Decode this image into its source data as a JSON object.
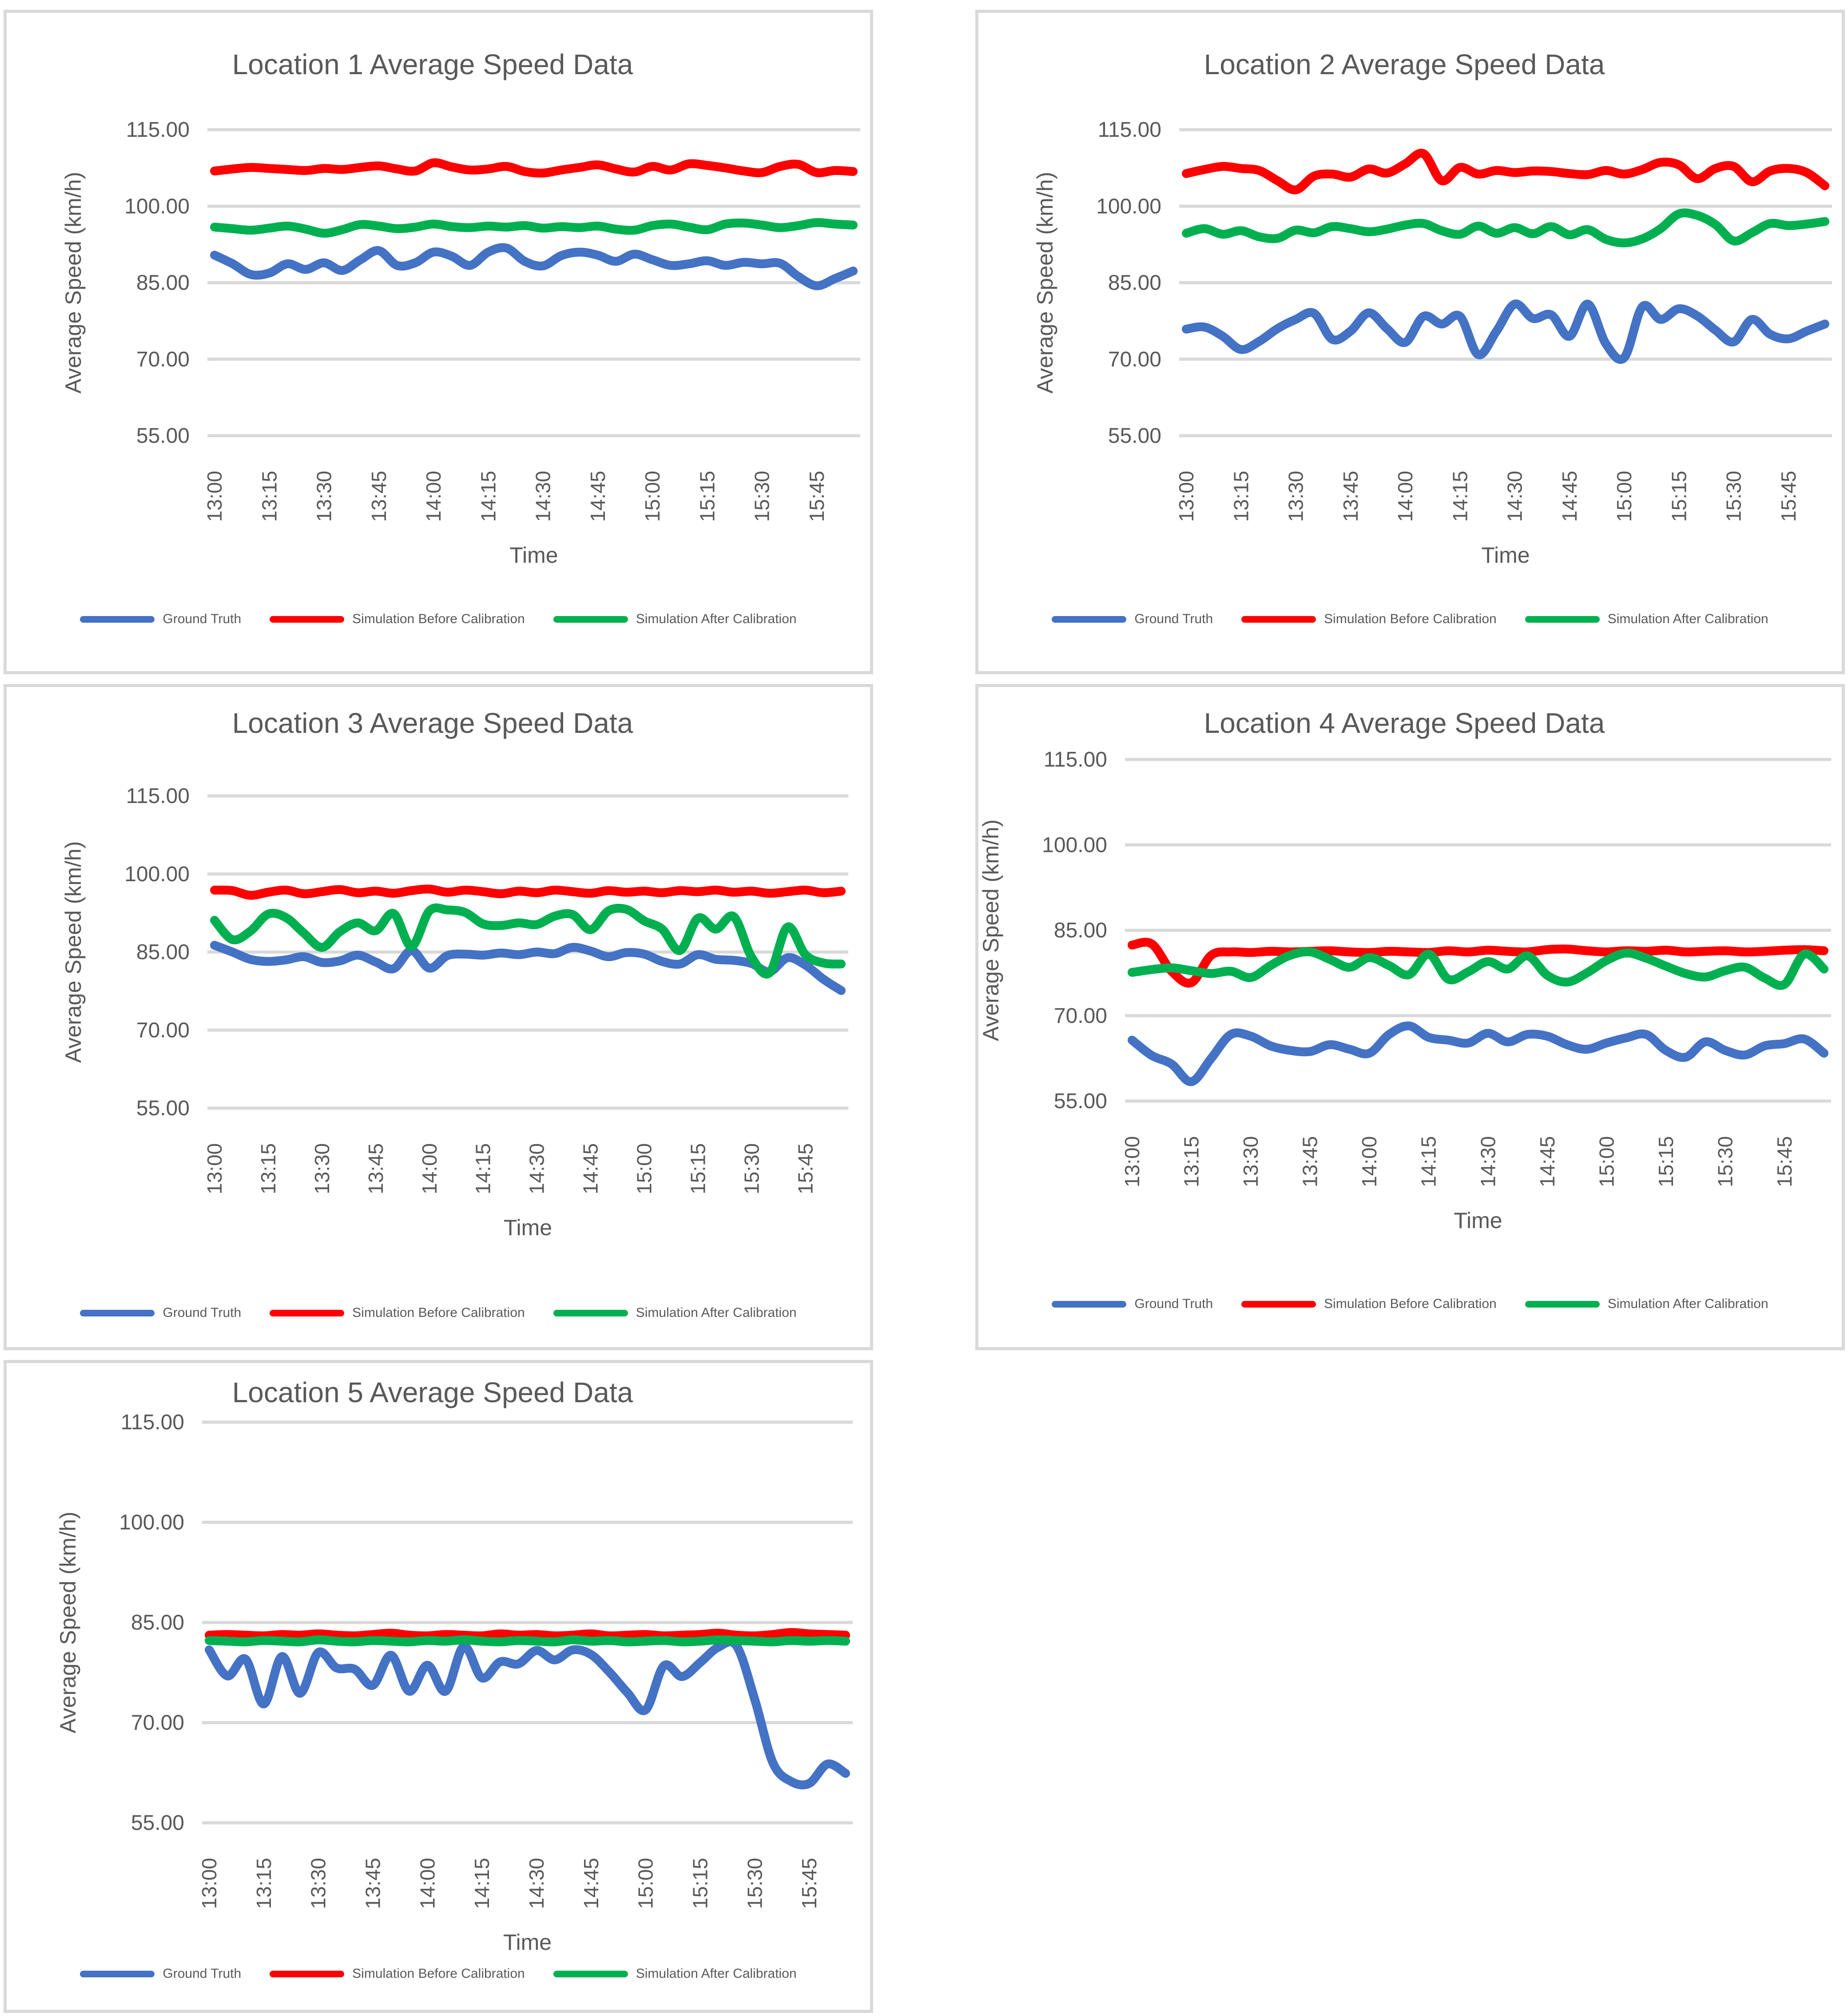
{
  "page": {
    "background": "#FFFFFF"
  },
  "colors": {
    "ground_truth": "#4472C4",
    "before_calibration": "#FF0000",
    "after_calibration": "#00B050",
    "gridline": "#D9D9D9",
    "chart_border": "#D9D9D9",
    "text": "#595959"
  },
  "axis": {
    "y_title": "Average Speed (km/h)",
    "x_title": "Time",
    "y_tick_labels": [
      "115.00",
      "100.00",
      "85.00",
      "70.00",
      "55.00"
    ],
    "y_tick_values": [
      115,
      100,
      85,
      70,
      55
    ],
    "y_min": 55,
    "y_max": 115,
    "x_tick_labels": [
      "13:00",
      "13:15",
      "13:30",
      "13:45",
      "14:00",
      "14:15",
      "14:30",
      "14:45",
      "15:00",
      "15:15",
      "15:30",
      "15:45"
    ]
  },
  "legend": {
    "items": [
      {
        "label": "Ground Truth",
        "color_key": "ground_truth"
      },
      {
        "label": "Simulation Before Calibration",
        "color_key": "before_calibration"
      },
      {
        "label": "Simulation After Calibration",
        "color_key": "after_calibration"
      }
    ]
  },
  "chart_data": {
    "type": "line",
    "grid": "horizontal-only",
    "legend_position": "bottom",
    "x_categories": [
      "13:00",
      "13:05",
      "13:10",
      "13:15",
      "13:20",
      "13:25",
      "13:30",
      "13:35",
      "13:40",
      "13:45",
      "13:50",
      "13:55",
      "14:00",
      "14:05",
      "14:10",
      "14:15",
      "14:20",
      "14:25",
      "14:30",
      "14:35",
      "14:40",
      "14:45",
      "14:50",
      "14:55",
      "15:00",
      "15:05",
      "15:10",
      "15:15",
      "15:20",
      "15:25",
      "15:30",
      "15:35",
      "15:40",
      "15:45",
      "15:50",
      "15:55"
    ],
    "charts": [
      {
        "title": "Location 1 Average Speed Data",
        "series": [
          {
            "name": "Ground Truth",
            "color_key": "ground_truth",
            "values": [
              90.4,
              88.7,
              86.6,
              86.9,
              88.7,
              87.6,
              88.9,
              87.4,
              89.5,
              91.3,
              88.4,
              88.9,
              91.0,
              90.2,
              88.4,
              91.0,
              91.8,
              89.2,
              88.3,
              90.3,
              91.0,
              90.4,
              89.2,
              90.6,
              89.5,
              88.4,
              88.7,
              89.3,
              88.4,
              89.0,
              88.7,
              88.8,
              86.2,
              84.4,
              85.8,
              87.3
            ]
          },
          {
            "name": "Simulation Before Calibration",
            "color_key": "before_calibration",
            "values": [
              106.9,
              107.3,
              107.6,
              107.4,
              107.2,
              107.0,
              107.4,
              107.2,
              107.6,
              107.9,
              107.3,
              106.9,
              108.5,
              107.7,
              107.1,
              107.3,
              107.8,
              106.8,
              106.5,
              107.1,
              107.6,
              108.1,
              107.3,
              106.7,
              107.8,
              107.1,
              108.3,
              108.0,
              107.5,
              106.9,
              106.6,
              107.8,
              108.2,
              106.6,
              107.0,
              106.8
            ]
          },
          {
            "name": "Simulation After Calibration",
            "color_key": "after_calibration",
            "values": [
              95.9,
              95.6,
              95.3,
              95.7,
              96.1,
              95.5,
              94.7,
              95.4,
              96.4,
              96.1,
              95.6,
              95.9,
              96.5,
              96.0,
              95.8,
              96.1,
              95.9,
              96.2,
              95.7,
              96.0,
              95.8,
              96.1,
              95.5,
              95.3,
              96.2,
              96.5,
              95.9,
              95.4,
              96.5,
              96.7,
              96.3,
              95.8,
              96.2,
              96.8,
              96.5,
              96.3
            ]
          }
        ]
      },
      {
        "title": "Location 2 Average Speed Data",
        "series": [
          {
            "name": "Ground Truth",
            "color_key": "ground_truth",
            "values": [
              75.9,
              76.3,
              74.5,
              71.9,
              73.5,
              76.0,
              77.8,
              79.0,
              73.9,
              75.5,
              79.1,
              76.0,
              73.3,
              78.4,
              76.9,
              78.4,
              70.9,
              75.5,
              80.8,
              78.0,
              78.7,
              74.5,
              80.8,
              73.0,
              70.3,
              80.3,
              77.8,
              79.9,
              78.5,
              75.7,
              73.4,
              77.8,
              74.9,
              74.0,
              75.5,
              76.9
            ]
          },
          {
            "name": "Simulation Before Calibration",
            "color_key": "before_calibration",
            "values": [
              106.4,
              107.2,
              107.8,
              107.4,
              107.0,
              105.0,
              103.2,
              105.9,
              106.3,
              105.7,
              107.3,
              106.5,
              108.3,
              110.3,
              105.0,
              107.6,
              106.3,
              107.0,
              106.6,
              106.9,
              106.8,
              106.4,
              106.2,
              107.0,
              106.3,
              107.2,
              108.6,
              108.1,
              105.4,
              107.4,
              107.8,
              104.8,
              106.9,
              107.4,
              106.6,
              104.0
            ]
          },
          {
            "name": "Simulation After Calibration",
            "color_key": "after_calibration",
            "values": [
              94.7,
              95.6,
              94.5,
              95.2,
              94.0,
              93.7,
              95.3,
              94.8,
              96.0,
              95.6,
              95.0,
              95.5,
              96.3,
              96.6,
              95.2,
              94.5,
              96.1,
              94.7,
              95.8,
              94.6,
              96.0,
              94.4,
              95.4,
              93.5,
              92.8,
              93.6,
              95.6,
              98.5,
              98.2,
              96.4,
              93.2,
              94.8,
              96.6,
              96.2,
              96.5,
              97.0
            ]
          }
        ]
      },
      {
        "title": "Location 3 Average Speed Data",
        "series": [
          {
            "name": "Ground Truth",
            "color_key": "ground_truth",
            "values": [
              86.3,
              85.0,
              83.6,
              83.2,
              83.5,
              84.1,
              83.0,
              83.3,
              84.4,
              83.1,
              81.8,
              85.3,
              81.9,
              84.3,
              84.6,
              84.4,
              84.8,
              84.5,
              85.0,
              84.7,
              85.9,
              85.2,
              84.1,
              84.9,
              84.6,
              83.2,
              82.7,
              84.5,
              83.6,
              83.4,
              82.8,
              81.2,
              83.9,
              82.5,
              79.8,
              77.6
            ]
          },
          {
            "name": "Simulation Before Calibration",
            "color_key": "before_calibration",
            "values": [
              96.9,
              96.8,
              95.9,
              96.5,
              96.9,
              96.2,
              96.6,
              97.0,
              96.4,
              96.7,
              96.3,
              96.8,
              97.1,
              96.5,
              96.9,
              96.6,
              96.2,
              96.7,
              96.4,
              96.9,
              96.6,
              96.3,
              96.8,
              96.5,
              96.7,
              96.4,
              96.8,
              96.6,
              96.9,
              96.5,
              96.7,
              96.3,
              96.6,
              96.9,
              96.4,
              96.7
            ]
          },
          {
            "name": "Simulation After Calibration",
            "color_key": "after_calibration",
            "values": [
              91.1,
              87.4,
              89.0,
              92.3,
              91.6,
              88.6,
              85.9,
              88.9,
              90.6,
              89.1,
              92.4,
              86.1,
              92.9,
              93.1,
              92.6,
              90.4,
              90.1,
              90.6,
              90.3,
              91.9,
              92.2,
              89.3,
              92.9,
              93.2,
              91.0,
              89.4,
              85.3,
              91.5,
              89.4,
              91.8,
              84.0,
              81.0,
              89.8,
              84.5,
              82.9,
              82.7
            ]
          }
        ]
      },
      {
        "title": "Location 4 Average Speed Data",
        "series": [
          {
            "name": "Ground Truth",
            "color_key": "ground_truth",
            "values": [
              65.7,
              63.0,
              61.5,
              58.4,
              62.5,
              66.7,
              66.4,
              64.7,
              63.9,
              63.7,
              64.9,
              64.1,
              63.4,
              66.7,
              68.2,
              66.2,
              65.7,
              65.2,
              66.9,
              65.4,
              66.7,
              66.4,
              64.9,
              64.1,
              65.2,
              66.1,
              66.7,
              63.9,
              62.7,
              65.4,
              63.9,
              63.1,
              64.7,
              65.1,
              65.9,
              63.4
            ]
          },
          {
            "name": "Simulation Before Calibration",
            "color_key": "before_calibration",
            "values": [
              82.4,
              82.6,
              77.8,
              75.8,
              80.6,
              81.2,
              81.1,
              81.3,
              81.2,
              81.3,
              81.4,
              81.2,
              81.1,
              81.3,
              81.2,
              81.1,
              81.4,
              81.2,
              81.5,
              81.3,
              81.2,
              81.6,
              81.7,
              81.4,
              81.2,
              81.4,
              81.3,
              81.5,
              81.2,
              81.3,
              81.4,
              81.2,
              81.3,
              81.5,
              81.6,
              81.4
            ]
          },
          {
            "name": "Simulation After Calibration",
            "color_key": "after_calibration",
            "values": [
              77.6,
              78.1,
              78.4,
              77.9,
              77.4,
              77.8,
              76.7,
              78.8,
              80.6,
              81.2,
              79.9,
              78.5,
              80.2,
              78.8,
              77.2,
              80.8,
              76.4,
              77.7,
              79.5,
              78.2,
              80.5,
              77.1,
              75.9,
              77.5,
              79.7,
              81.0,
              80.1,
              78.7,
              77.4,
              76.8,
              77.9,
              78.5,
              76.6,
              75.5,
              80.8,
              78.2
            ]
          }
        ]
      },
      {
        "title": "Location 5 Average Speed Data",
        "series": [
          {
            "name": "Ground Truth",
            "color_key": "ground_truth",
            "values": [
              80.9,
              77.0,
              79.5,
              72.8,
              79.9,
              74.4,
              80.5,
              78.2,
              78.0,
              75.6,
              80.1,
              74.7,
              78.6,
              74.7,
              81.4,
              76.7,
              79.1,
              78.8,
              80.8,
              79.4,
              80.9,
              80.2,
              77.6,
              74.5,
              71.9,
              78.5,
              76.9,
              79.0,
              81.3,
              81.5,
              73.5,
              64.0,
              61.2,
              60.9,
              63.8,
              62.4
            ]
          },
          {
            "name": "Simulation Before Calibration",
            "color_key": "before_calibration",
            "values": [
              83.1,
              83.2,
              83.1,
              83.0,
              83.2,
              83.1,
              83.3,
              83.1,
              83.0,
              83.2,
              83.4,
              83.1,
              83.0,
              83.2,
              83.1,
              83.0,
              83.3,
              83.1,
              83.2,
              83.0,
              83.1,
              83.3,
              83.0,
              83.1,
              83.2,
              83.0,
              83.1,
              83.2,
              83.4,
              83.1,
              83.0,
              83.2,
              83.5,
              83.3,
              83.2,
              83.1
            ]
          },
          {
            "name": "Simulation After Calibration",
            "color_key": "after_calibration",
            "values": [
              82.3,
              82.2,
              82.1,
              82.3,
              82.2,
              82.1,
              82.4,
              82.2,
              82.1,
              82.3,
              82.2,
              82.1,
              82.3,
              82.2,
              82.4,
              82.2,
              82.1,
              82.3,
              82.2,
              82.1,
              82.4,
              82.2,
              82.3,
              82.1,
              82.2,
              82.3,
              82.1,
              82.2,
              82.4,
              82.3,
              82.2,
              82.1,
              82.3,
              82.2,
              82.3,
              82.2
            ]
          }
        ]
      }
    ]
  }
}
